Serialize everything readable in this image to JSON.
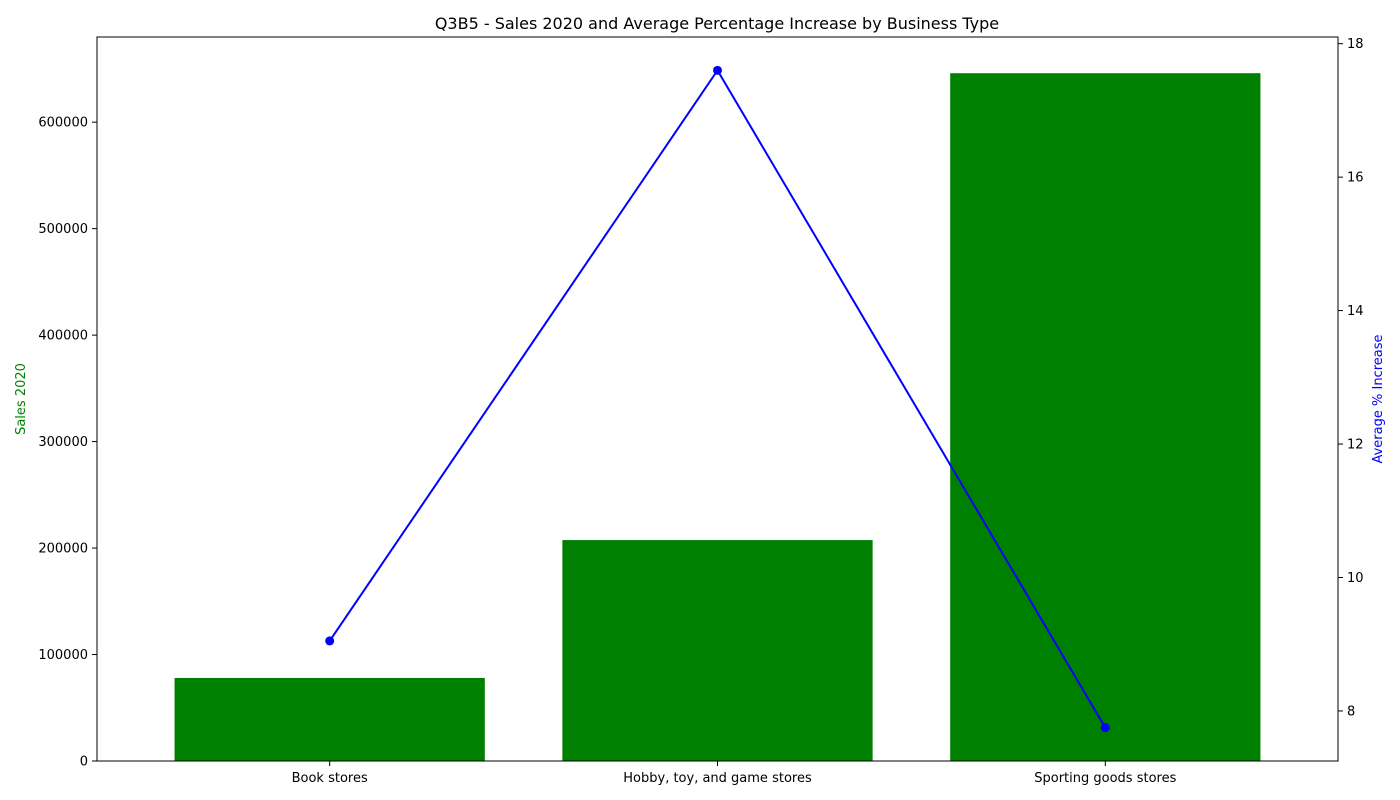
{
  "chart_data": {
    "type": "bar",
    "title": "Q3B5 - Sales 2020 and Average Percentage Increase by Business Type",
    "categories": [
      "Book stores",
      "Hobby, toy, and game stores",
      "Sporting goods stores"
    ],
    "y_left": {
      "label": "Sales 2020",
      "label_color": "#008000",
      "range": [
        0,
        680000
      ],
      "ticks": [
        0,
        100000,
        200000,
        300000,
        400000,
        500000,
        600000
      ]
    },
    "y_right": {
      "label": "Average % Increase",
      "label_color": "#0000ff",
      "range": [
        7.25,
        18.1
      ],
      "ticks": [
        8,
        10,
        12,
        14,
        16,
        18
      ]
    },
    "series": [
      {
        "name": "Sales 2020",
        "type": "bar",
        "axis": "left",
        "color": "#008000",
        "values": [
          78000,
          207500,
          646000
        ]
      },
      {
        "name": "Average % Increase",
        "type": "line",
        "axis": "right",
        "color": "#0000ff",
        "values": [
          9.05,
          17.6,
          7.75
        ]
      }
    ],
    "grid": false,
    "legend": "none"
  }
}
